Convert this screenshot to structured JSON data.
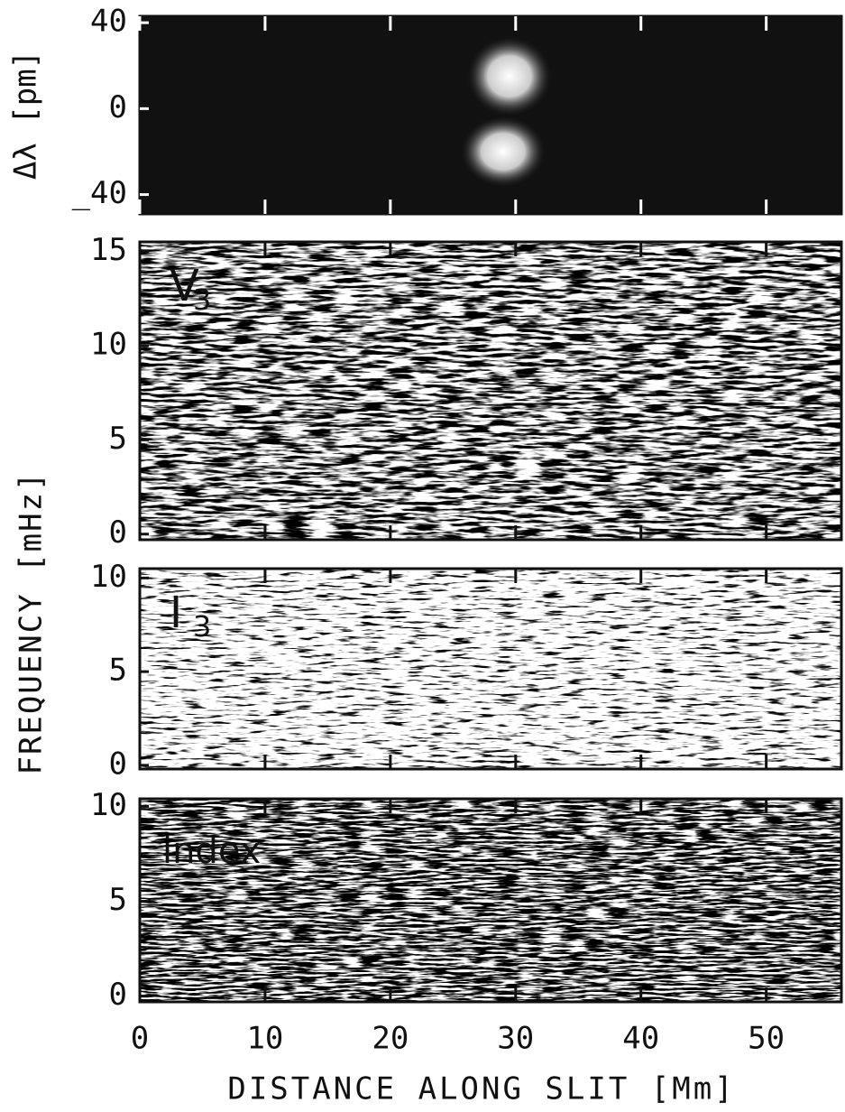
{
  "shared_ylabel": "FREQUENCY [mHz]",
  "chart_data": [
    {
      "type": "heatmap",
      "ylabel": "Δλ [pm]",
      "ylim": [
        -49,
        43
      ],
      "yticks": [
        {
          "value": -40,
          "label": "_40"
        },
        0,
        40
      ],
      "xlim": [
        0,
        56
      ],
      "xticks": [
        0,
        10,
        20,
        30,
        40,
        50
      ]
    },
    {
      "type": "heatmap",
      "annotation": "V",
      "annotation_sub": "3",
      "ylim": [
        -0.3,
        15.5
      ],
      "yticks": [
        0,
        5,
        10,
        15
      ],
      "xlim": [
        0,
        56
      ],
      "xticks": [
        0,
        10,
        20,
        30,
        40,
        50
      ]
    },
    {
      "type": "heatmap",
      "annotation": "I",
      "annotation_sub": "3",
      "ylim": [
        -0.2,
        10.5
      ],
      "yticks": [
        0,
        5,
        10
      ],
      "xlim": [
        0,
        56
      ],
      "xticks": [
        0,
        10,
        20,
        30,
        40,
        50
      ]
    },
    {
      "type": "heatmap",
      "annotation": "index",
      "ylim": [
        -0.3,
        10.4
      ],
      "yticks": [
        0,
        5,
        10
      ],
      "xlim": [
        0,
        56
      ],
      "xticks": [
        0,
        10,
        20,
        30,
        40,
        50
      ],
      "xlabel": "DISTANCE ALONG SLIT [Mm]"
    }
  ]
}
